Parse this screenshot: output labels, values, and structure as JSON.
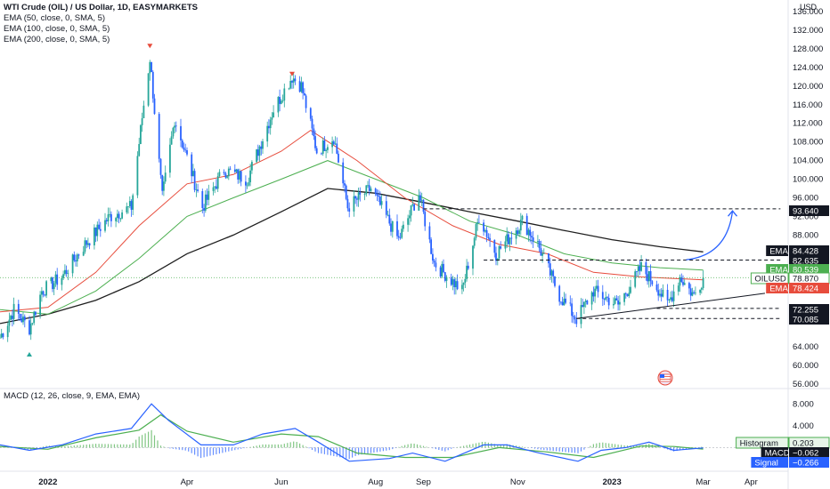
{
  "header": {
    "symbol_line": "WTI Crude (OIL) / US Dollar, 1D, EASYMARKETS",
    "indicators": [
      "EMA (50, close, 0, SMA, 5)",
      "EMA (100, close, 0, SMA, 5)",
      "EMA (200, close, 0, SMA, 5)"
    ],
    "currency": "USD"
  },
  "macd_header": "MACD (12, 26, close, 9, EMA, EMA)",
  "colors": {
    "up": "#26a69a",
    "down": "#2962ff",
    "ema50": "#e74c3c",
    "ema100": "#4caf50",
    "ema200": "#1f1f1f",
    "macd": "#2962ff",
    "signal": "#4caf50",
    "hist_pos": "#4caf50",
    "hist_neg": "#2962ff",
    "arrow": "#2962ff",
    "grid": "#ffffff"
  },
  "price_axis": {
    "min": 56,
    "max": 136,
    "ticks": [
      {
        "v": 132,
        "l": "132.000"
      },
      {
        "v": 128,
        "l": "128.000"
      },
      {
        "v": 124,
        "l": "124.000"
      },
      {
        "v": 120,
        "l": "120.000"
      },
      {
        "v": 116,
        "l": "116.000"
      },
      {
        "v": 112,
        "l": "112.000"
      },
      {
        "v": 108,
        "l": "108.000"
      },
      {
        "v": 104,
        "l": "104.000"
      },
      {
        "v": 100,
        "l": "100.000"
      },
      {
        "v": 96,
        "l": "96.000"
      },
      {
        "v": 92,
        "l": "92.000"
      },
      {
        "v": 88,
        "l": "88.000"
      },
      {
        "v": 64,
        "l": "64.000"
      },
      {
        "v": 60,
        "l": "60.000"
      },
      {
        "v": 56,
        "l": "56.000"
      },
      {
        "v": 136,
        "l": "136.000"
      }
    ]
  },
  "macd_axis": {
    "min": -4,
    "max": 10,
    "ticks": [
      {
        "v": 8,
        "l": "8.000"
      },
      {
        "v": 4,
        "l": "4.000"
      }
    ]
  },
  "x_axis": {
    "start": "2021-12-01",
    "end": "2023-04-25",
    "labels": [
      {
        "d": "2022-01-01",
        "l": "2022"
      },
      {
        "d": "2022-04-01",
        "l": "Apr"
      },
      {
        "d": "2022-06-01",
        "l": "Jun"
      },
      {
        "d": "2022-08-01",
        "l": "Aug"
      },
      {
        "d": "2022-09-01",
        "l": "Sep"
      },
      {
        "d": "2022-11-01",
        "l": "Nov"
      },
      {
        "d": "2023-01-01",
        "l": "2023"
      },
      {
        "d": "2023-03-01",
        "l": "Mar"
      },
      {
        "d": "2023-04-01",
        "l": "Apr"
      }
    ]
  },
  "price_tags": [
    {
      "label": "",
      "value": "93.640",
      "v": 93.64,
      "bg": "#131722",
      "fg": "#ffffff"
    },
    {
      "label": "EMA",
      "value": "84.428",
      "v": 84.428,
      "bg": "#131722",
      "fg": "#ffffff"
    },
    {
      "label": "",
      "value": "82.635",
      "v": 82.635,
      "bg": "#131722",
      "fg": "#ffffff"
    },
    {
      "label": "EMA",
      "value": "80.539",
      "v": 80.539,
      "bg": "#4caf50",
      "fg": "#ffffff"
    },
    {
      "label": "OILUSD",
      "value": "78.870",
      "v": 78.87,
      "bg": "#ffffff",
      "fg": "#131722",
      "border": "#4caf50"
    },
    {
      "label": "EMA",
      "value": "78.424",
      "v": 78.424,
      "bg": "#e74c3c",
      "fg": "#ffffff"
    },
    {
      "label": "",
      "value": "72.255",
      "v": 72.255,
      "bg": "#131722",
      "fg": "#ffffff"
    },
    {
      "label": "",
      "value": "70.085",
      "v": 70.085,
      "bg": "#131722",
      "fg": "#ffffff"
    }
  ],
  "macd_tags": [
    {
      "label": "Histogram",
      "value": "0.203",
      "v": 0.203,
      "bg": "#e8f5e9",
      "fg": "#131722",
      "border": "#4caf50"
    },
    {
      "label": "MACD",
      "value": "−0.062",
      "v": -0.062,
      "bg": "#131722",
      "fg": "#ffffff"
    },
    {
      "label": "Signal",
      "value": "−0.266",
      "v": -0.266,
      "bg": "#2962ff",
      "fg": "#ffffff"
    }
  ],
  "chart_data": {
    "type": "candlestick",
    "title": "WTI Crude (OIL) / US Dollar, 1D, EASYMARKETS",
    "anchors": [
      [
        "2021-12-01",
        66
      ],
      [
        "2021-12-10",
        72
      ],
      [
        "2021-12-20",
        68
      ],
      [
        "2021-12-28",
        76
      ],
      [
        "2022-01-10",
        79
      ],
      [
        "2022-01-25",
        86
      ],
      [
        "2022-02-10",
        92
      ],
      [
        "2022-02-24",
        94
      ],
      [
        "2022-03-04",
        116
      ],
      [
        "2022-03-08",
        126
      ],
      [
        "2022-03-16",
        96
      ],
      [
        "2022-03-24",
        113
      ],
      [
        "2022-04-11",
        94
      ],
      [
        "2022-04-25",
        102
      ],
      [
        "2022-05-10",
        100
      ],
      [
        "2022-05-27",
        115
      ],
      [
        "2022-06-08",
        122
      ],
      [
        "2022-06-14",
        120
      ],
      [
        "2022-06-24",
        106
      ],
      [
        "2022-07-05",
        109
      ],
      [
        "2022-07-14",
        94
      ],
      [
        "2022-07-29",
        98
      ],
      [
        "2022-08-16",
        87
      ],
      [
        "2022-08-29",
        97
      ],
      [
        "2022-09-08",
        82
      ],
      [
        "2022-09-26",
        76
      ],
      [
        "2022-10-07",
        92
      ],
      [
        "2022-10-18",
        84
      ],
      [
        "2022-11-04",
        91
      ],
      [
        "2022-11-14",
        86
      ],
      [
        "2022-11-28",
        75
      ],
      [
        "2022-12-09",
        70
      ],
      [
        "2022-12-20",
        76
      ],
      [
        "2023-01-05",
        73
      ],
      [
        "2023-01-20",
        81
      ],
      [
        "2023-01-30",
        77
      ],
      [
        "2023-02-06",
        73
      ],
      [
        "2023-02-14",
        79
      ],
      [
        "2023-02-23",
        75
      ],
      [
        "2023-03-01",
        78.87
      ]
    ],
    "ema50_pts": [
      [
        "2021-12-01",
        71.5
      ],
      [
        "2022-01-01",
        72.5
      ],
      [
        "2022-02-01",
        80
      ],
      [
        "2022-03-01",
        90
      ],
      [
        "2022-04-01",
        99
      ],
      [
        "2022-05-01",
        101
      ],
      [
        "2022-06-01",
        106
      ],
      [
        "2022-06-20",
        110.5
      ],
      [
        "2022-07-20",
        104
      ],
      [
        "2022-08-20",
        96
      ],
      [
        "2022-09-20",
        90
      ],
      [
        "2022-10-20",
        86
      ],
      [
        "2022-11-20",
        84
      ],
      [
        "2022-12-20",
        80
      ],
      [
        "2023-01-20",
        79
      ],
      [
        "2023-03-01",
        78.4
      ]
    ],
    "ema100_pts": [
      [
        "2021-12-01",
        72
      ],
      [
        "2022-01-01",
        71
      ],
      [
        "2022-02-01",
        76
      ],
      [
        "2022-03-01",
        83
      ],
      [
        "2022-04-01",
        92
      ],
      [
        "2022-05-01",
        96
      ],
      [
        "2022-06-01",
        100
      ],
      [
        "2022-07-01",
        104
      ],
      [
        "2022-08-01",
        100
      ],
      [
        "2022-09-01",
        96
      ],
      [
        "2022-10-01",
        91
      ],
      [
        "2022-11-01",
        88
      ],
      [
        "2022-12-01",
        84
      ],
      [
        "2023-01-01",
        82
      ],
      [
        "2023-02-01",
        81
      ],
      [
        "2023-03-01",
        80.5
      ]
    ],
    "ema200_pts": [
      [
        "2021-12-01",
        69
      ],
      [
        "2022-01-01",
        71
      ],
      [
        "2022-02-01",
        74
      ],
      [
        "2022-03-01",
        78
      ],
      [
        "2022-04-01",
        84
      ],
      [
        "2022-05-01",
        88
      ],
      [
        "2022-06-01",
        93
      ],
      [
        "2022-07-01",
        98
      ],
      [
        "2022-08-01",
        97
      ],
      [
        "2022-09-01",
        95
      ],
      [
        "2022-10-01",
        93
      ],
      [
        "2022-11-01",
        91
      ],
      [
        "2022-12-01",
        89
      ],
      [
        "2023-01-01",
        87
      ],
      [
        "2023-02-01",
        85.5
      ],
      [
        "2023-03-01",
        84.4
      ]
    ],
    "macd_pts": [
      [
        "2021-12-01",
        0.5
      ],
      [
        "2021-12-20",
        -0.5
      ],
      [
        "2022-01-10",
        0.5
      ],
      [
        "2022-02-01",
        2.5
      ],
      [
        "2022-02-24",
        3.5
      ],
      [
        "2022-03-09",
        8
      ],
      [
        "2022-03-20",
        5
      ],
      [
        "2022-04-10",
        0.5
      ],
      [
        "2022-05-01",
        0.5
      ],
      [
        "2022-05-20",
        2.5
      ],
      [
        "2022-06-10",
        3.5
      ],
      [
        "2022-06-25",
        1
      ],
      [
        "2022-07-15",
        -2.5
      ],
      [
        "2022-08-10",
        -2
      ],
      [
        "2022-08-25",
        -1
      ],
      [
        "2022-09-15",
        -2.5
      ],
      [
        "2022-10-10",
        0.5
      ],
      [
        "2022-10-25",
        0.5
      ],
      [
        "2022-11-15",
        -1
      ],
      [
        "2022-12-10",
        -2.5
      ],
      [
        "2022-12-25",
        -0.5
      ],
      [
        "2023-01-10",
        0
      ],
      [
        "2023-01-25",
        1
      ],
      [
        "2023-02-10",
        -0.5
      ],
      [
        "2023-03-01",
        -0.062
      ]
    ],
    "signal_pts": [
      [
        "2021-12-01",
        0.2
      ],
      [
        "2022-01-01",
        -0.3
      ],
      [
        "2022-02-01",
        1.8
      ],
      [
        "2022-03-01",
        3.2
      ],
      [
        "2022-03-15",
        6
      ],
      [
        "2022-04-01",
        3
      ],
      [
        "2022-05-01",
        1
      ],
      [
        "2022-06-01",
        2.5
      ],
      [
        "2022-06-25",
        2
      ],
      [
        "2022-07-20",
        -1
      ],
      [
        "2022-08-20",
        -1.8
      ],
      [
        "2022-09-20",
        -1.8
      ],
      [
        "2022-10-20",
        0
      ],
      [
        "2022-11-20",
        -0.8
      ],
      [
        "2022-12-20",
        -1.8
      ],
      [
        "2023-01-20",
        0.3
      ],
      [
        "2023-02-10",
        0.2
      ],
      [
        "2023-03-01",
        -0.266
      ]
    ],
    "annotations": {
      "hlines": [
        {
          "v": 93.64,
          "from": "2022-09-01",
          "to": "2023-04-20"
        },
        {
          "v": 82.635,
          "from": "2022-10-10",
          "to": "2023-04-20"
        },
        {
          "v": 72.255,
          "from": "2023-01-30",
          "to": "2023-04-20"
        },
        {
          "v": 70.085,
          "from": "2022-12-09",
          "to": "2023-04-20"
        }
      ],
      "trendline": {
        "from": [
          "2022-12-09",
          70.085
        ],
        "to": [
          "2023-04-10",
          75.5
        ]
      },
      "forecast_arrow": {
        "from": [
          "2023-02-18",
          82.7
        ],
        "to": [
          "2023-03-20",
          93.2
        ]
      },
      "up_marker": [
        "2021-12-20",
        62.5
      ],
      "down_markers": [
        [
          "2022-03-08",
          128.5
        ],
        [
          "2022-06-08",
          122.5
        ]
      ],
      "last_price": 78.87
    },
    "price_scale": {
      "min": 56,
      "max": 136
    },
    "macd_scale": {
      "min": -4,
      "max": 10
    }
  }
}
